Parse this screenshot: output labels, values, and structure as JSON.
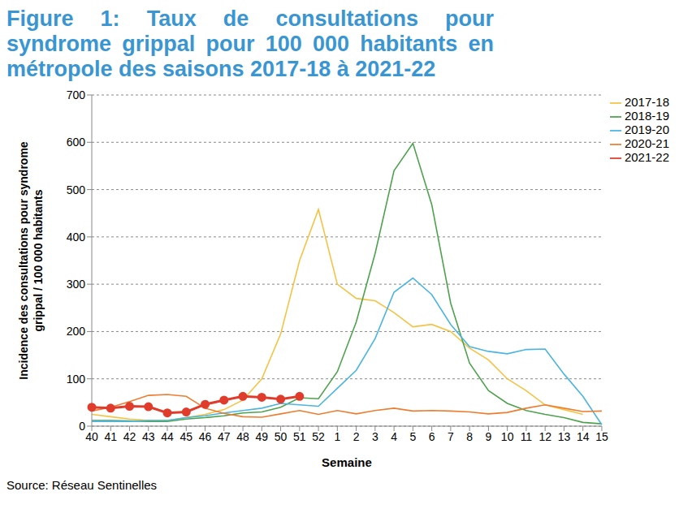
{
  "chart_data": {
    "type": "line",
    "title": "Figure 1: Taux de consultations pour syndrome grippal pour 100 000 habitants en métropole des saisons 2017-18 à 2021-22",
    "x_label": "Semaine",
    "y_label": "Incidence des consultations pour syndrome grippal / 100 000 habitants",
    "source": "Source: Réseau Sentinelles",
    "categories": [
      "40",
      "41",
      "42",
      "43",
      "44",
      "45",
      "46",
      "47",
      "48",
      "49",
      "50",
      "51",
      "52",
      "1",
      "2",
      "3",
      "4",
      "5",
      "6",
      "7",
      "8",
      "9",
      "10",
      "11",
      "12",
      "13",
      "14",
      "15"
    ],
    "series": [
      {
        "name": "2017-18",
        "color": "#f5c344",
        "values": [
          25,
          20,
          15,
          12,
          12,
          18,
          25,
          35,
          55,
          100,
          195,
          350,
          458,
          300,
          270,
          265,
          240,
          210,
          215,
          200,
          165,
          140,
          100,
          75,
          45,
          35,
          25,
          null
        ]
      },
      {
        "name": "2018-19",
        "color": "#4ea24e",
        "values": [
          12,
          12,
          11,
          10,
          10,
          15,
          18,
          22,
          28,
          30,
          40,
          60,
          58,
          115,
          220,
          365,
          540,
          598,
          468,
          260,
          133,
          75,
          48,
          33,
          25,
          18,
          8,
          5
        ]
      },
      {
        "name": "2019-20",
        "color": "#4bb5e0",
        "values": [
          10,
          10,
          10,
          12,
          12,
          18,
          22,
          28,
          33,
          38,
          48,
          45,
          42,
          80,
          118,
          185,
          283,
          313,
          278,
          215,
          168,
          158,
          153,
          162,
          163,
          110,
          63,
          3
        ]
      },
      {
        "name": "2020-21",
        "color": "#ed7d31",
        "values": [
          32,
          40,
          52,
          65,
          67,
          63,
          38,
          27,
          20,
          19,
          26,
          33,
          25,
          33,
          26,
          33,
          38,
          32,
          33,
          32,
          30,
          26,
          29,
          38,
          45,
          38,
          31,
          32
        ]
      },
      {
        "name": "2021-22",
        "color": "#e03c2c",
        "marker": "circle",
        "values": [
          40,
          38,
          42,
          41,
          28,
          30,
          46,
          55,
          63,
          61,
          57,
          63,
          null,
          null,
          null,
          null,
          null,
          null,
          null,
          null,
          null,
          null,
          null,
          null,
          null,
          null,
          null,
          null
        ]
      }
    ],
    "ylim": [
      0,
      700
    ],
    "yticks": [
      0,
      100,
      200,
      300,
      400,
      500,
      600,
      700
    ],
    "grid": true,
    "legend": "top-right"
  }
}
